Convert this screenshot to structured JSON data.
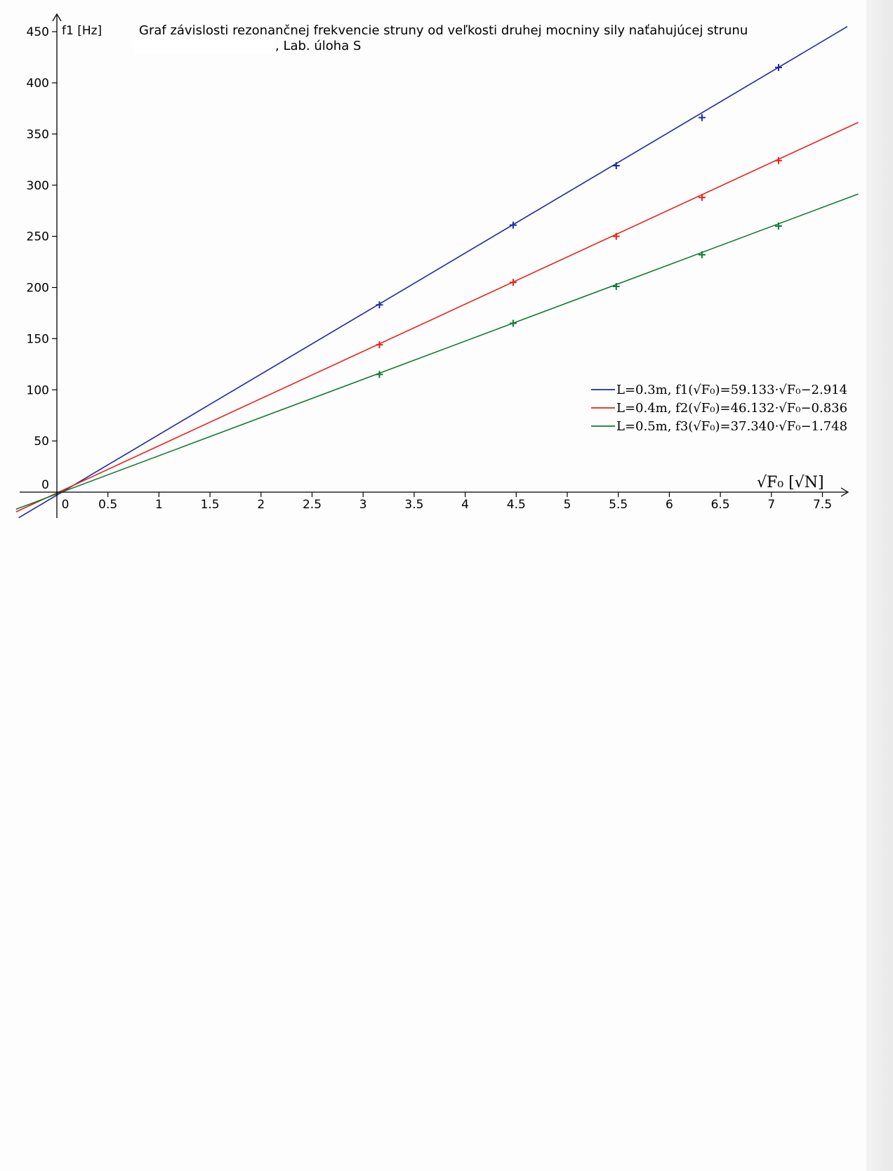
{
  "chart_data": {
    "type": "line",
    "title": "Graf závislosti rezonančnej frekvencie struny od veľkosti druhej mocniny sily naťahujúcej strunu",
    "subtitle": ", Lab. úloha S",
    "ylabel": "f1 [Hz]",
    "xlabel": "√F₀ [√N]",
    "xlim": [
      -0.4,
      7.85
    ],
    "ylim": [
      -25,
      455
    ],
    "x_ticks": [
      "0",
      "0.5",
      "1",
      "1.5",
      "2",
      "2.5",
      "3",
      "3.5",
      "4",
      "4.5",
      "5",
      "5.5",
      "6",
      "6.5",
      "7",
      "7.5"
    ],
    "y_ticks": [
      "0",
      "50",
      "100",
      "150",
      "200",
      "250",
      "300",
      "350",
      "400",
      "450"
    ],
    "legend_position": "right",
    "series": [
      {
        "name": "L=0.3m, f1(√F₀)=59.133·√F₀−2.914",
        "color": "#1f2aa0",
        "slope": 59.133,
        "intercept": -2.914,
        "points": [
          [
            3.16,
            183
          ],
          [
            4.47,
            261
          ],
          [
            5.48,
            319
          ],
          [
            6.32,
            366
          ],
          [
            7.07,
            415
          ]
        ]
      },
      {
        "name": "L=0.4m, f2(√F₀)=46.132·√F₀−0.836",
        "color": "#e8231d",
        "slope": 46.132,
        "intercept": -0.836,
        "points": [
          [
            3.16,
            144
          ],
          [
            4.47,
            205
          ],
          [
            5.48,
            250
          ],
          [
            6.32,
            288
          ],
          [
            7.07,
            324
          ]
        ]
      },
      {
        "name": "L=0.5m, f3(√F₀)=37.340·√F₀−1.748",
        "color": "#137a35",
        "slope": 37.34,
        "intercept": -1.748,
        "points": [
          [
            3.16,
            115
          ],
          [
            4.47,
            165
          ],
          [
            5.48,
            201
          ],
          [
            6.32,
            232
          ],
          [
            7.07,
            260
          ]
        ]
      }
    ]
  }
}
